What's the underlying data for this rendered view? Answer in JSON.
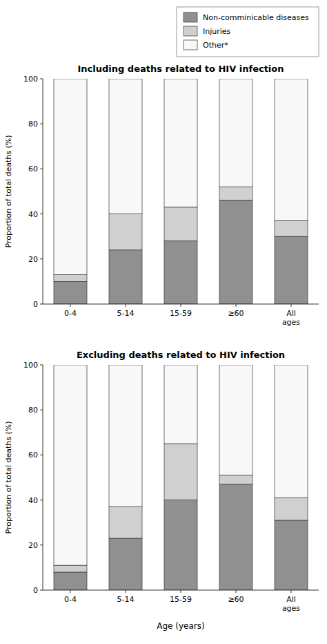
{
  "chart_data": [
    {
      "type": "bar",
      "stacked": true,
      "grid": false,
      "legend": "upper right",
      "title": "Including deaths related to HIV infection",
      "ylabel": "Proportion of total deaths (%)",
      "categories": [
        "0-4",
        "5-14",
        "15-59",
        "≥60",
        "All\nages"
      ],
      "series": [
        {
          "name": "Non-comminicable diseases",
          "color": "#909090",
          "values": [
            10,
            24,
            28,
            46,
            30
          ]
        },
        {
          "name": "Injuries",
          "color": "#d0d0d0",
          "values": [
            3,
            16,
            15,
            6,
            7
          ]
        },
        {
          "name": "Other*",
          "color": "#f8f8f8",
          "values": [
            87,
            60,
            57,
            48,
            63
          ]
        }
      ],
      "ylim": [
        0,
        100
      ],
      "yticks": [
        0,
        20,
        40,
        60,
        80,
        100
      ]
    },
    {
      "type": "bar",
      "stacked": true,
      "grid": false,
      "title": "Excluding deaths related to HIV infection",
      "xlabel": "Age (years)",
      "ylabel": "Proportion of total deaths (%)",
      "categories": [
        "0-4",
        "5-14",
        "15-59",
        "≥60",
        "All\nages"
      ],
      "series": [
        {
          "name": "Non-comminicable diseases",
          "color": "#909090",
          "values": [
            8,
            23,
            40,
            47,
            31
          ]
        },
        {
          "name": "Injuries",
          "color": "#d0d0d0",
          "values": [
            3,
            14,
            25,
            4,
            10
          ]
        },
        {
          "name": "Other*",
          "color": "#f8f8f8",
          "values": [
            89,
            63,
            35,
            49,
            59
          ]
        }
      ],
      "ylim": [
        0,
        100
      ],
      "yticks": [
        0,
        20,
        40,
        60,
        80,
        100
      ]
    }
  ]
}
